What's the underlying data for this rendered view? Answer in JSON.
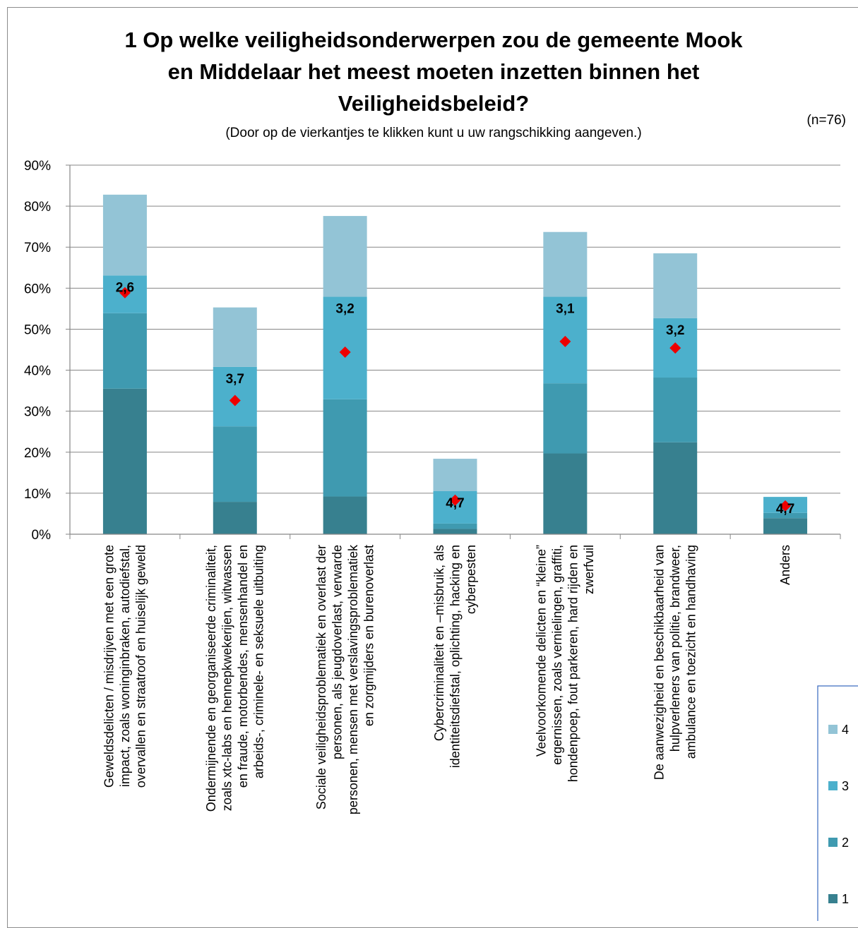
{
  "chart_data": {
    "type": "bar",
    "stacked": true,
    "title_lines": [
      "1 Op welke veiligheidsonderwerpen zou de gemeente Mook",
      "en Middelaar het meest moeten inzetten binnen het",
      "Veiligheidsbeleid?"
    ],
    "subtitle": "(Door op de vierkantjes te klikken kunt u uw rangschikking aangeven.)",
    "note": "(n=76)",
    "ylim": [
      0,
      90
    ],
    "yticks": [
      "0%",
      "10%",
      "20%",
      "30%",
      "40%",
      "50%",
      "60%",
      "70%",
      "80%",
      "90%"
    ],
    "grid": true,
    "legend_position": "right",
    "categories": [
      [
        "Geweldsdelicten / misdrijven met een grote",
        "impact, zoals woninginbraken, autodiefstal,",
        "overvallen en straatroof en huiselijk geweld"
      ],
      [
        "Ondermijnende en georganiseerde criminaliteit,",
        "zoals xtc-labs en hennepkwekerijen, witwassen",
        "en fraude, motorbendes, mensenhandel en",
        "arbeids-, criminele- en seksuele uitbuiting"
      ],
      [
        "Sociale veiligheidsproblematiek en overlast der",
        "personen, als jeugdoverlast, verwarde",
        "personen, mensen met verslavingsproblematiek",
        "en zorgmijders en burenoverlast"
      ],
      [
        "Cybercriminaliteit en –misbruik, als",
        "identiteitsdiefstal, oplichting, hacking en",
        "cyberpesten"
      ],
      [
        "Veelvoorkomende delicten en “kleine”",
        "ergernissen, zoals vernielingen, graffiti,",
        "hondenpoep, fout parkeren, hard rijden en",
        "zwerfvuil"
      ],
      [
        "De aanwezigheid en beschikbaarheid van",
        "hulpverleners van politie, brandweer,",
        "ambulance en toezicht en handhaving"
      ],
      [
        "Anders"
      ]
    ],
    "series": [
      {
        "name": "1",
        "color": "#37808f",
        "values": [
          35.5,
          7.9,
          9.2,
          1.3,
          19.7,
          22.4,
          3.9
        ]
      },
      {
        "name": "2",
        "color": "#3f9ab0",
        "values": [
          18.4,
          18.4,
          23.7,
          1.3,
          17.1,
          15.8,
          1.3
        ]
      },
      {
        "name": "3",
        "color": "#4cb0cc",
        "values": [
          9.2,
          14.5,
          25.0,
          7.9,
          21.1,
          14.5,
          3.9
        ]
      },
      {
        "name": "4",
        "color": "#93c4d6",
        "values": [
          19.7,
          14.5,
          19.7,
          7.9,
          15.8,
          15.8,
          0
        ]
      }
    ],
    "averages": {
      "marker_color": "#ee0000",
      "labels": [
        "2,6",
        "3,7",
        "3,2",
        "4,7",
        "3,1",
        "3,2",
        "4,7"
      ],
      "marker_y": [
        58.9,
        32.6,
        44.4,
        8.3,
        47.0,
        45.4,
        6.9
      ]
    }
  }
}
